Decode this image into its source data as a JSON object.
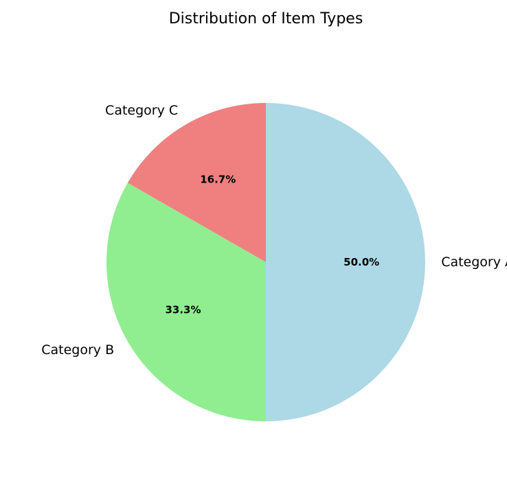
{
  "chart_data": {
    "type": "pie",
    "title": "Distribution of Item Types",
    "categories": [
      "Category A",
      "Category B",
      "Category C"
    ],
    "values": [
      50.0,
      33.3,
      16.7
    ],
    "percent_labels": [
      "50.0%",
      "33.3%",
      "16.7%"
    ],
    "colors": [
      "#add8e6",
      "#90ee90",
      "#f08080"
    ],
    "start_angle_deg": 90,
    "direction": "clockwise",
    "legend": "none"
  }
}
